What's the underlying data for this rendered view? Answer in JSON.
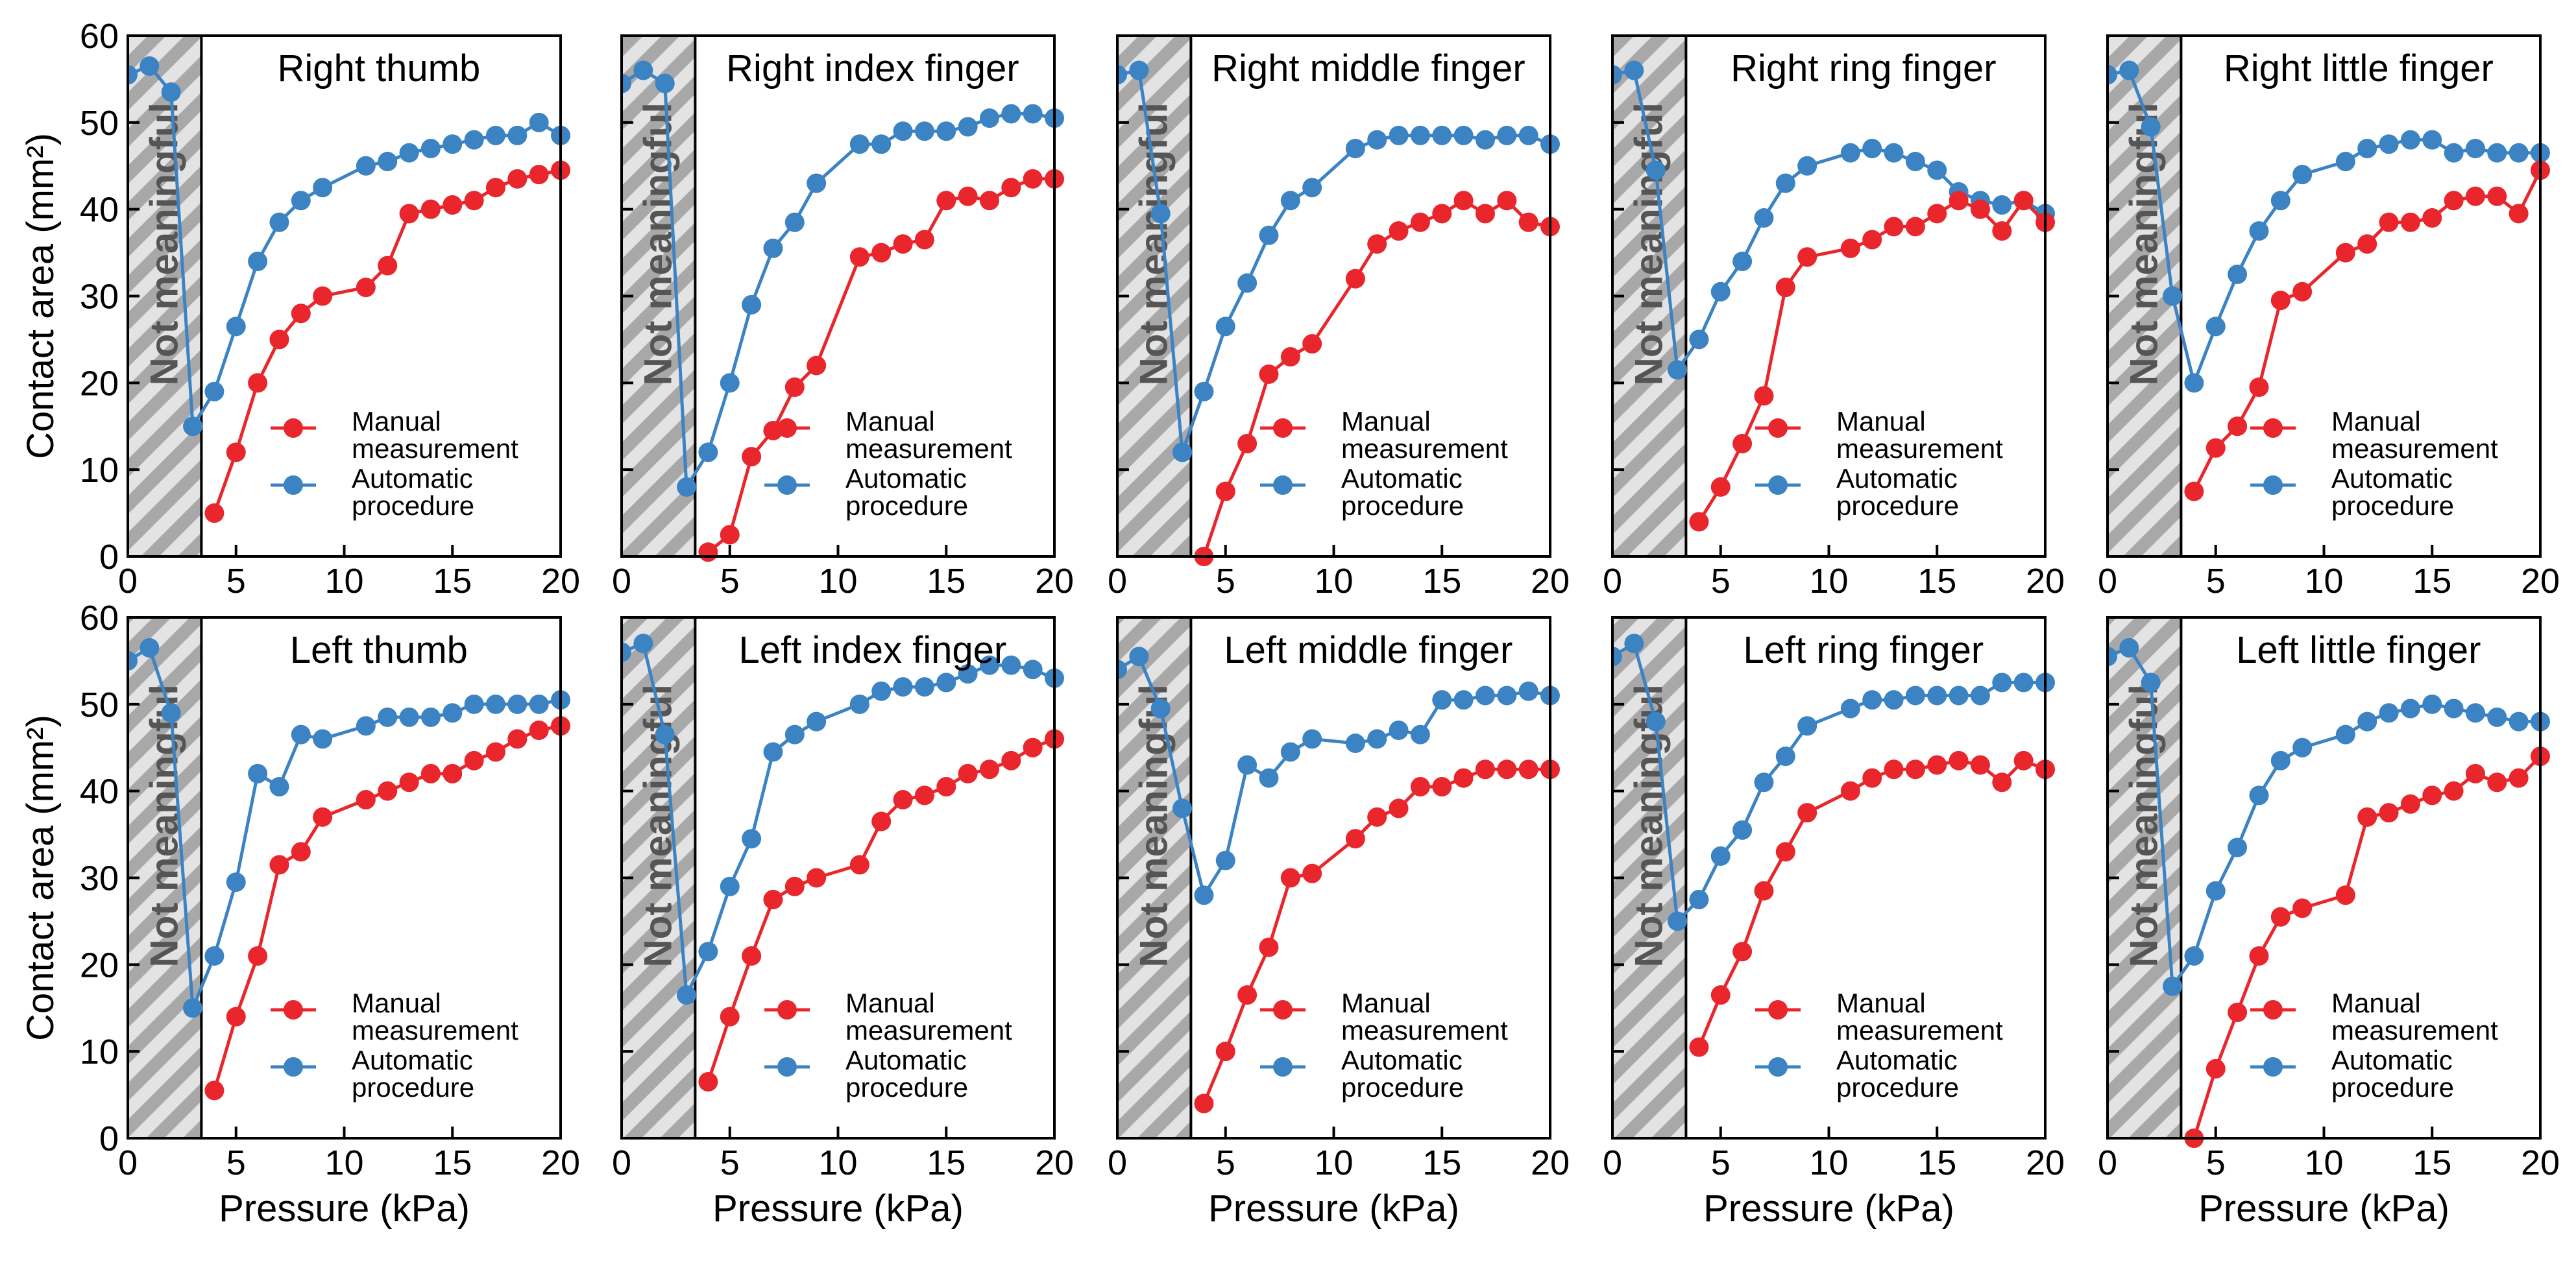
{
  "colors": {
    "manual": "#e8262b",
    "automatic": "#3b83c2",
    "hatch_light": "#e3e3e3",
    "hatch_dark": "#a8a8a8",
    "text": "#000000"
  },
  "axes_common": {
    "xlabel": "Pressure (kPa)",
    "ylabel": "Contact area (mm²)",
    "xlim": [
      0,
      20
    ],
    "ylim": [
      0,
      60
    ],
    "xticks": [
      0,
      5,
      10,
      15,
      20
    ],
    "xtick_labels": [
      "0",
      "5",
      "10",
      "15",
      "20"
    ],
    "yticks": [
      0,
      10,
      20,
      30,
      40,
      50,
      60
    ],
    "ytick_labels": [
      "0",
      "10",
      "20",
      "30",
      "40",
      "50",
      "60"
    ],
    "shaded_region": [
      0,
      3.4
    ],
    "shaded_label": "Not meaningful"
  },
  "legend": {
    "manual_line1": "Manual",
    "manual_line2": "measurement",
    "automatic_line1": "Automatic",
    "automatic_line2": "procedure",
    "placement": "lower-right"
  },
  "chart_data": [
    {
      "type": "line",
      "title": "Right thumb",
      "series": [
        {
          "name": "Manual measurement",
          "x": [
            4,
            5,
            6,
            7,
            8,
            9,
            11,
            12,
            13,
            14,
            15,
            16,
            17,
            18,
            19,
            20
          ],
          "values": [
            5,
            12,
            20,
            25,
            28,
            30,
            31,
            33.5,
            39.5,
            40,
            40.5,
            41,
            42.5,
            43.5,
            44,
            44.5
          ]
        },
        {
          "name": "Automatic procedure",
          "x": [
            0,
            1,
            2,
            3,
            4,
            5,
            6,
            7,
            8,
            9,
            11,
            12,
            13,
            14,
            15,
            16,
            17,
            18,
            19,
            20
          ],
          "values": [
            55.5,
            56.5,
            53.5,
            15,
            19,
            26.5,
            34,
            38.5,
            41,
            42.5,
            45,
            45.5,
            46.5,
            47,
            47.5,
            48,
            48.5,
            48.5,
            50,
            48.5
          ]
        }
      ]
    },
    {
      "type": "line",
      "title": "Right index finger",
      "series": [
        {
          "name": "Manual measurement",
          "x": [
            4,
            5,
            6,
            7,
            8,
            9,
            11,
            12,
            13,
            14,
            15,
            16,
            17,
            18,
            19,
            20
          ],
          "values": [
            0.5,
            2.5,
            11.5,
            14.5,
            19.5,
            22,
            34.5,
            35,
            36,
            36.5,
            41,
            41.5,
            41,
            42.5,
            43.5,
            43.5
          ]
        },
        {
          "name": "Automatic procedure",
          "x": [
            0,
            1,
            2,
            3,
            4,
            5,
            6,
            7,
            8,
            9,
            11,
            12,
            13,
            14,
            15,
            16,
            17,
            18,
            19,
            20
          ],
          "values": [
            54.5,
            56,
            54.5,
            8,
            12,
            20,
            29,
            35.5,
            38.5,
            43,
            47.5,
            47.5,
            49,
            49,
            49,
            49.5,
            50.5,
            51,
            51,
            50.5
          ]
        }
      ]
    },
    {
      "type": "line",
      "title": "Right middle finger",
      "series": [
        {
          "name": "Manual measurement",
          "x": [
            4,
            5,
            6,
            7,
            8,
            9,
            11,
            12,
            13,
            14,
            15,
            16,
            17,
            18,
            19,
            20
          ],
          "values": [
            0,
            7.5,
            13,
            21,
            23,
            24.5,
            32,
            36,
            37.5,
            38.5,
            39.5,
            41,
            39.5,
            41,
            38.5,
            38
          ]
        },
        {
          "name": "Automatic procedure",
          "x": [
            0,
            1,
            2,
            3,
            4,
            5,
            6,
            7,
            8,
            9,
            11,
            12,
            13,
            14,
            15,
            16,
            17,
            18,
            19,
            20
          ],
          "values": [
            55.5,
            56,
            39.5,
            12,
            19,
            26.5,
            31.5,
            37,
            41,
            42.5,
            47,
            48,
            48.5,
            48.5,
            48.5,
            48.5,
            48,
            48.5,
            48.5,
            47.5
          ]
        }
      ]
    },
    {
      "type": "line",
      "title": "Right ring finger",
      "series": [
        {
          "name": "Manual measurement",
          "x": [
            4,
            5,
            6,
            7,
            8,
            9,
            11,
            12,
            13,
            14,
            15,
            16,
            17,
            18,
            19,
            20
          ],
          "values": [
            4,
            8,
            13,
            18.5,
            31,
            34.5,
            35.5,
            36.5,
            38,
            38,
            39.5,
            41,
            40,
            37.5,
            41,
            38.5
          ]
        },
        {
          "name": "Automatic procedure",
          "x": [
            0,
            1,
            2,
            3,
            4,
            5,
            6,
            7,
            8,
            9,
            11,
            12,
            13,
            14,
            15,
            16,
            17,
            18,
            19,
            20
          ],
          "values": [
            55.5,
            56,
            44.5,
            21.5,
            25,
            30.5,
            34,
            39,
            43,
            45,
            46.5,
            47,
            46.5,
            45.5,
            44.5,
            42,
            41,
            40.5,
            41,
            39.5
          ]
        }
      ]
    },
    {
      "type": "line",
      "title": "Right little finger",
      "series": [
        {
          "name": "Manual measurement",
          "x": [
            4,
            5,
            6,
            7,
            8,
            9,
            11,
            12,
            13,
            14,
            15,
            16,
            17,
            18,
            19,
            20
          ],
          "values": [
            7.5,
            12.5,
            15,
            19.5,
            29.5,
            30.5,
            35,
            36,
            38.5,
            38.5,
            39,
            41,
            41.5,
            41.5,
            39.5,
            44.5
          ]
        },
        {
          "name": "Automatic procedure",
          "x": [
            0,
            1,
            2,
            3,
            4,
            5,
            6,
            7,
            8,
            9,
            11,
            12,
            13,
            14,
            15,
            16,
            17,
            18,
            19,
            20
          ],
          "values": [
            55.5,
            56,
            49.5,
            30,
            20,
            26.5,
            32.5,
            37.5,
            41,
            44,
            45.5,
            47,
            47.5,
            48,
            48,
            46.5,
            47,
            46.5,
            46.5,
            46.5
          ]
        }
      ]
    },
    {
      "type": "line",
      "title": "Left thumb",
      "series": [
        {
          "name": "Manual measurement",
          "x": [
            4,
            5,
            6,
            7,
            8,
            9,
            11,
            12,
            13,
            14,
            15,
            16,
            17,
            18,
            19,
            20
          ],
          "values": [
            5.5,
            14,
            21,
            31.5,
            33,
            37,
            39,
            40,
            41,
            42,
            42,
            43.5,
            44.5,
            46,
            47,
            47.5
          ]
        },
        {
          "name": "Automatic procedure",
          "x": [
            0,
            1,
            2,
            3,
            4,
            5,
            6,
            7,
            8,
            9,
            11,
            12,
            13,
            14,
            15,
            16,
            17,
            18,
            19,
            20
          ],
          "values": [
            55,
            56.5,
            49,
            15,
            21,
            29.5,
            42,
            40.5,
            46.5,
            46,
            47.5,
            48.5,
            48.5,
            48.5,
            49,
            50,
            50,
            50,
            50,
            50.5
          ]
        }
      ]
    },
    {
      "type": "line",
      "title": "Left index finger",
      "series": [
        {
          "name": "Manual measurement",
          "x": [
            4,
            5,
            6,
            7,
            8,
            9,
            11,
            12,
            13,
            14,
            15,
            16,
            17,
            18,
            19,
            20
          ],
          "values": [
            6.5,
            14,
            21,
            27.5,
            29,
            30,
            31.5,
            36.5,
            39,
            39.5,
            40.5,
            42,
            42.5,
            43.5,
            45,
            46
          ]
        },
        {
          "name": "Automatic procedure",
          "x": [
            0,
            1,
            2,
            3,
            4,
            5,
            6,
            7,
            8,
            9,
            11,
            12,
            13,
            14,
            15,
            16,
            17,
            18,
            19,
            20
          ],
          "values": [
            56,
            57,
            46.5,
            16.5,
            21.5,
            29,
            34.5,
            44.5,
            46.5,
            48,
            50,
            51.5,
            52,
            52,
            52.5,
            53.5,
            54.5,
            54.5,
            54,
            53
          ]
        }
      ]
    },
    {
      "type": "line",
      "title": "Left middle finger",
      "series": [
        {
          "name": "Manual measurement",
          "x": [
            4,
            5,
            6,
            7,
            8,
            9,
            11,
            12,
            13,
            14,
            15,
            16,
            17,
            18,
            19,
            20
          ],
          "values": [
            4,
            10,
            16.5,
            22,
            30,
            30.5,
            34.5,
            37,
            38,
            40.5,
            40.5,
            41.5,
            42.5,
            42.5,
            42.5,
            42.5
          ]
        },
        {
          "name": "Automatic procedure",
          "x": [
            0,
            1,
            2,
            3,
            4,
            5,
            6,
            7,
            8,
            9,
            11,
            12,
            13,
            14,
            15,
            16,
            17,
            18,
            19,
            20
          ],
          "values": [
            54,
            55.5,
            49.5,
            38,
            28,
            32,
            43,
            41.5,
            44.5,
            46,
            45.5,
            46,
            47,
            46.5,
            50.5,
            50.5,
            51,
            51,
            51.5,
            51
          ]
        }
      ]
    },
    {
      "type": "line",
      "title": "Left ring finger",
      "series": [
        {
          "name": "Manual measurement",
          "x": [
            4,
            5,
            6,
            7,
            8,
            9,
            11,
            12,
            13,
            14,
            15,
            16,
            17,
            18,
            19,
            20
          ],
          "values": [
            10.5,
            16.5,
            21.5,
            28.5,
            33,
            37.5,
            40,
            41.5,
            42.5,
            42.5,
            43,
            43.5,
            43,
            41,
            43.5,
            42.5
          ]
        },
        {
          "name": "Automatic procedure",
          "x": [
            0,
            1,
            2,
            3,
            4,
            5,
            6,
            7,
            8,
            9,
            11,
            12,
            13,
            14,
            15,
            16,
            17,
            18,
            19,
            20
          ],
          "values": [
            55.5,
            57,
            48,
            25,
            27.5,
            32.5,
            35.5,
            41,
            44,
            47.5,
            49.5,
            50.5,
            50.5,
            51,
            51,
            51,
            51,
            52.5,
            52.5,
            52.5
          ]
        }
      ]
    },
    {
      "type": "line",
      "title": "Left little finger",
      "series": [
        {
          "name": "Manual measurement",
          "x": [
            4,
            5,
            6,
            7,
            8,
            9,
            11,
            12,
            13,
            14,
            15,
            16,
            17,
            18,
            19,
            20
          ],
          "values": [
            0,
            8,
            14.5,
            21,
            25.5,
            26.5,
            28,
            37,
            37.5,
            38.5,
            39.5,
            40,
            42,
            41,
            41.5,
            44
          ]
        },
        {
          "name": "Automatic procedure",
          "x": [
            0,
            1,
            2,
            3,
            4,
            5,
            6,
            7,
            8,
            9,
            11,
            12,
            13,
            14,
            15,
            16,
            17,
            18,
            19,
            20
          ],
          "values": [
            55.5,
            56.5,
            52.5,
            17.5,
            21,
            28.5,
            33.5,
            39.5,
            43.5,
            45,
            46.5,
            48,
            49,
            49.5,
            50,
            49.5,
            49,
            48.5,
            48,
            48
          ]
        }
      ]
    }
  ]
}
